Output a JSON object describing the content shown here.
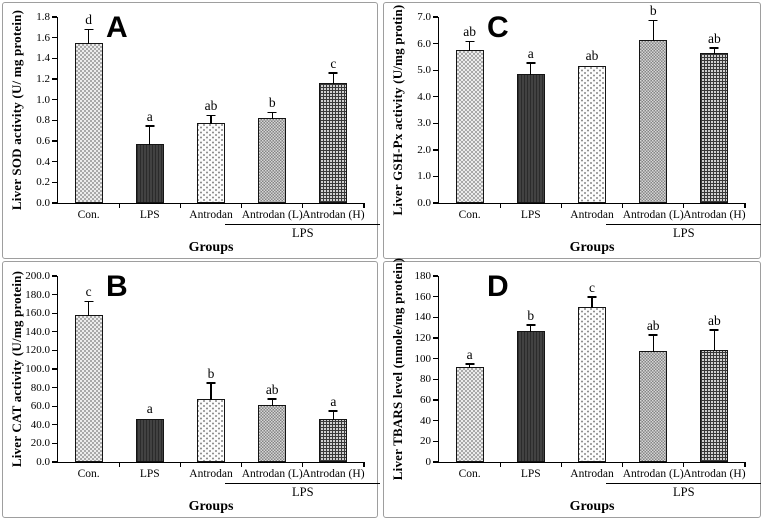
{
  "figure": {
    "background": "#ffffff",
    "panel_border_color": "#9e9e9e",
    "axis_color": "#000000",
    "text_color": "#000000"
  },
  "bar_patterns": [
    "checker-light",
    "solid-dark",
    "dotted-white",
    "checker-gray",
    "plaid-grid"
  ],
  "chart_data": [
    {
      "type": "bar",
      "panel_label": "A",
      "position": "top-left",
      "ylabel": "Liver SOD activity (U/ mg protein)",
      "xlabel": "Groups",
      "categories": [
        "Con.",
        "LPS",
        "Antrodan",
        "Antrodan (L)",
        "Antrodan (H)"
      ],
      "values": [
        1.55,
        0.57,
        0.77,
        0.82,
        1.16
      ],
      "errors": [
        0.12,
        0.17,
        0.07,
        0.05,
        0.09
      ],
      "sig_letters": [
        "d",
        "a",
        "ab",
        "b",
        "c"
      ],
      "ylim": [
        0,
        1.8
      ],
      "ytick_step": 0.2,
      "ytick_decimals": 1,
      "grid": false,
      "legend": "none",
      "group_bracket": {
        "label": "LPS",
        "from_index": 3,
        "to_index": 4
      }
    },
    {
      "type": "bar",
      "panel_label": "C",
      "position": "top-right",
      "ylabel": "Liver GSH-Px activity (U/mg protin)",
      "xlabel": "Groups",
      "categories": [
        "Con.",
        "LPS",
        "Antrodan",
        "Antrodan (L)",
        "Antrodan (H)"
      ],
      "values": [
        5.75,
        4.85,
        5.15,
        6.15,
        5.65
      ],
      "errors": [
        0.3,
        0.4,
        0,
        0.7,
        0.15
      ],
      "sig_letters": [
        "ab",
        "a",
        "ab",
        "b",
        "ab"
      ],
      "ylim": [
        0,
        7.0
      ],
      "ytick_step": 1.0,
      "ytick_decimals": 1,
      "grid": false,
      "legend": "none",
      "group_bracket": {
        "label": "LPS",
        "from_index": 3,
        "to_index": 4
      }
    },
    {
      "type": "bar",
      "panel_label": "B",
      "position": "bottom-left",
      "ylabel": "Liver CAT activity (U/mg protein)",
      "xlabel": "Groups",
      "categories": [
        "Con.",
        "LPS",
        "Antrodan",
        "Antrodan (L)",
        "Antrodan (H)"
      ],
      "values": [
        158,
        46,
        68,
        61,
        46
      ],
      "errors": [
        14,
        0,
        16,
        6,
        8
      ],
      "sig_letters": [
        "c",
        "a",
        "b",
        "ab",
        "a"
      ],
      "ylim": [
        0,
        200.0
      ],
      "ytick_step": 20,
      "ytick_decimals": 1,
      "grid": false,
      "legend": "none",
      "group_bracket": {
        "label": "LPS",
        "from_index": 3,
        "to_index": 4
      }
    },
    {
      "type": "bar",
      "panel_label": "D",
      "position": "bottom-right",
      "ylabel": "Liver TBARS level (nmole/mg protein)",
      "xlabel": "Groups",
      "categories": [
        "Con.",
        "LPS",
        "Antrodan",
        "Antrodan (L)",
        "Antrodan (H)"
      ],
      "values": [
        92,
        127,
        150,
        107,
        108
      ],
      "errors": [
        2,
        5,
        9,
        15,
        19
      ],
      "sig_letters": [
        "a",
        "b",
        "c",
        "ab",
        "ab"
      ],
      "ylim": [
        0,
        180
      ],
      "ytick_step": 20,
      "ytick_decimals": 0,
      "grid": false,
      "legend": "none",
      "group_bracket": {
        "label": "LPS",
        "from_index": 3,
        "to_index": 4
      }
    }
  ]
}
